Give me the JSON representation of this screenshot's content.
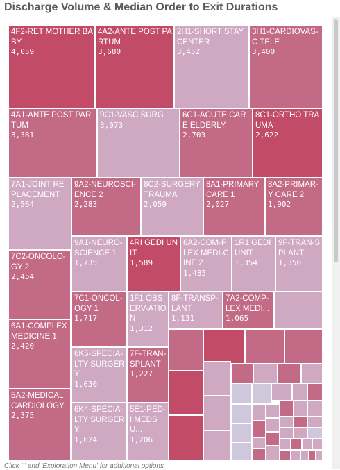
{
  "title": "Discharge Volume & Median Order to Exit Durations",
  "footer": "Click '  ' and 'Exploration Menu' for additional options",
  "colors": {
    "high": "#c24c68",
    "mid": "#c26a86",
    "low": "#cfa8c2",
    "lowest": "#cfc7dc"
  },
  "chart_data": {
    "type": "treemap",
    "title": "Discharge Volume & Median Order to Exit Durations",
    "labeled_items": [
      {
        "name": "4F2-RET MOTHER BABY",
        "value": 4059
      },
      {
        "name": "4A2-ANTE POST PARTUM",
        "value": 3680
      },
      {
        "name": "2H1-SHORT STAY CENTER",
        "value": 3452
      },
      {
        "name": "3H1-CARDIOVAS-C TELE",
        "value": 3400
      },
      {
        "name": "4A1-ANTE POST PARTUM",
        "value": 3381
      },
      {
        "name": "9C1-VASC SURG",
        "value": 3073
      },
      {
        "name": "6C1-ACUTE CARE ELDERLY",
        "value": 2703
      },
      {
        "name": "8C1-ORTHO TRAUMA",
        "value": 2622
      },
      {
        "name": "7A1-JOINT REPLACEMENT",
        "value": 2564
      },
      {
        "name": "9A2-NEUROSCI-ENCE 2",
        "value": 2283
      },
      {
        "name": "8C2-SURGERY TRAUMA",
        "value": 2059
      },
      {
        "name": "8A1-PRIMARY CARE 1",
        "value": 2027
      },
      {
        "name": "8A2-PRIMAR-Y CARE 2",
        "value": 1902
      },
      {
        "name": "7C2-ONCOLO-GY 2",
        "value": 2454
      },
      {
        "name": "9A1-NEURO-SCIENCE 1",
        "value": 1735
      },
      {
        "name": "4RI GEDI UNIT",
        "value": 1589
      },
      {
        "name": "6A2-COM-PLEX MEDI-CINE 2",
        "value": 1485
      },
      {
        "name": "1R1 GEDI UNIT",
        "value": 1354
      },
      {
        "name": "9F-TRAN-SPLANT",
        "value": 1350
      },
      {
        "name": "7C1-ONCOL-OGY 1",
        "value": 1717
      },
      {
        "name": "1F1 OBSERV-ATION",
        "value": 1312
      },
      {
        "name": "8F-TRANSP-LANT",
        "value": 1131
      },
      {
        "name": "7A2-COMP-LEX MEDI...",
        "value": 1065
      },
      {
        "name": "6A1-COMPLEX MEDICINE 1",
        "value": 2420
      },
      {
        "name": "6K5-SPECIA-LTY SURGERY",
        "value": 1630
      },
      {
        "name": "7F-TRAN-SPLANT",
        "value": 1227
      },
      {
        "name": "5A2-MEDICAL CARDIOLOGY",
        "value": 2375
      },
      {
        "name": "6K4-SPECIA-LTY SURGERY",
        "value": 1624
      },
      {
        "name": "5E1-PED-I MEDSU...",
        "value": 1206
      }
    ]
  }
}
